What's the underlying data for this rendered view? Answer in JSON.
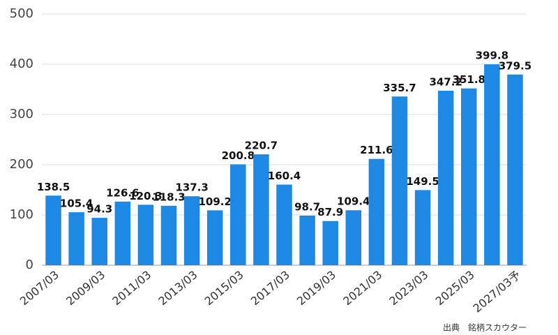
{
  "chart_data": {
    "type": "bar",
    "categories": [
      "2007/03",
      null,
      "2009/03",
      null,
      "2011/03",
      null,
      "2013/03",
      null,
      "2015/03",
      null,
      "2017/03",
      null,
      "2019/03",
      null,
      "2021/03",
      null,
      "2023/03",
      null,
      "2025/03",
      null,
      "2027/03予"
    ],
    "values": [
      138.5,
      105.4,
      94.3,
      126.6,
      120.3,
      118.3,
      137.3,
      109.2,
      200.8,
      220.7,
      160.4,
      98.7,
      87.9,
      109.4,
      211.6,
      335.7,
      149.5,
      347.2,
      351.8,
      399.8,
      379.5
    ],
    "color": "#1e88e5",
    "ylim": [
      0,
      500
    ],
    "yticks": [
      0,
      100,
      200,
      300,
      400,
      500
    ],
    "grid": true,
    "source": "出典　銘柄スカウター"
  }
}
